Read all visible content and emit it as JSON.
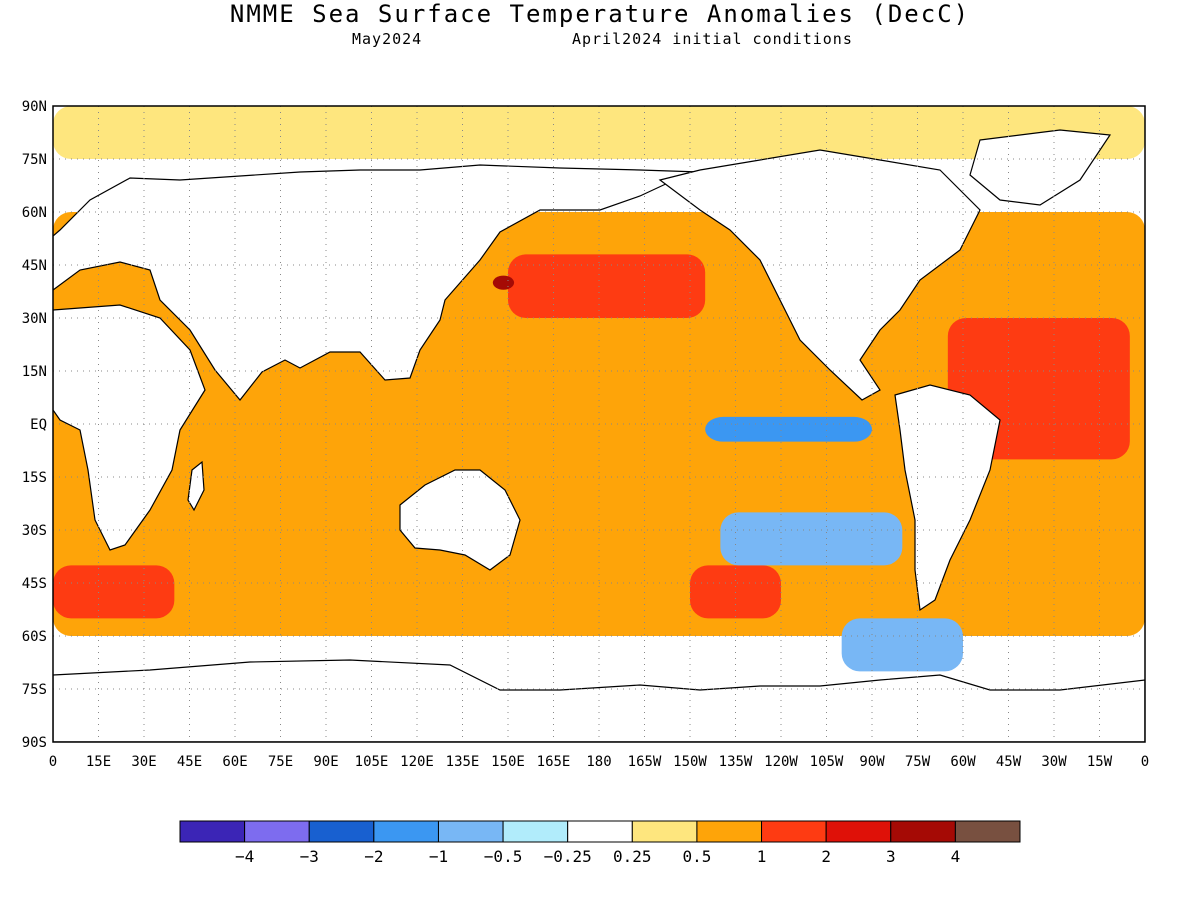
{
  "title": "NMME Sea Surface Temperature Anomalies (DecC)",
  "subtitle_left": "May2024",
  "subtitle_right": "April2024 initial conditions",
  "map": {
    "lon_range": [
      0,
      360
    ],
    "lat_range": [
      -90,
      90
    ],
    "lat_ticks": [
      "90N",
      "75N",
      "60N",
      "45N",
      "30N",
      "15N",
      "EQ",
      "15S",
      "30S",
      "45S",
      "60S",
      "75S",
      "90S"
    ],
    "lon_ticks": [
      "0",
      "15E",
      "30E",
      "45E",
      "60E",
      "75E",
      "90E",
      "105E",
      "120E",
      "135E",
      "150E",
      "165E",
      "180",
      "165W",
      "150W",
      "135W",
      "120W",
      "105W",
      "90W",
      "75W",
      "60W",
      "45W",
      "30W",
      "15W",
      "0"
    ],
    "grid": "dotted",
    "land_color": "#ffffff"
  },
  "colorbar": {
    "colors": [
      "#3b25b6",
      "#7d6cef",
      "#1860d0",
      "#3b97f2",
      "#78b7f5",
      "#b1ecfb",
      "#ffffff",
      "#fee67e",
      "#fea409",
      "#fe3b12",
      "#df1108",
      "#a50a05",
      "#785040"
    ],
    "labels": [
      "-4",
      "-3",
      "-2",
      "-1",
      "-0.5",
      "-0.25",
      "0.25",
      "0.5",
      "1",
      "2",
      "3",
      "4"
    ]
  },
  "anomaly_regions": [
    {
      "level": "0.5",
      "color": "#fea409",
      "lon_range": [
        0,
        360
      ],
      "lat_range": [
        -60,
        60
      ]
    },
    {
      "level": "0.25",
      "color": "#fee67e",
      "lon_range": [
        0,
        360
      ],
      "lat_range": [
        75,
        90
      ]
    },
    {
      "level": "2",
      "color": "#fe3b12",
      "lon_range": [
        150,
        215
      ],
      "lat_range": [
        30,
        48
      ]
    },
    {
      "level": "2",
      "color": "#fe3b12",
      "lon_range": [
        295,
        355
      ],
      "lat_range": [
        -10,
        30
      ]
    },
    {
      "level": "2",
      "color": "#fe3b12",
      "lon_range": [
        0,
        40
      ],
      "lat_range": [
        -55,
        -40
      ]
    },
    {
      "level": "2",
      "color": "#fe3b12",
      "lon_range": [
        210,
        240
      ],
      "lat_range": [
        -55,
        -40
      ]
    },
    {
      "level": "-1",
      "color": "#3b97f2",
      "lon_range": [
        215,
        270
      ],
      "lat_range": [
        -5,
        2
      ]
    },
    {
      "level": "-0.5",
      "color": "#78b7f5",
      "lon_range": [
        220,
        280
      ],
      "lat_range": [
        -40,
        -25
      ]
    },
    {
      "level": "-0.5",
      "color": "#78b7f5",
      "lon_range": [
        260,
        300
      ],
      "lat_range": [
        -70,
        -55
      ]
    },
    {
      "level": "3",
      "color": "#a50a05",
      "lon_range": [
        145,
        152
      ],
      "lat_range": [
        38,
        42
      ]
    }
  ]
}
